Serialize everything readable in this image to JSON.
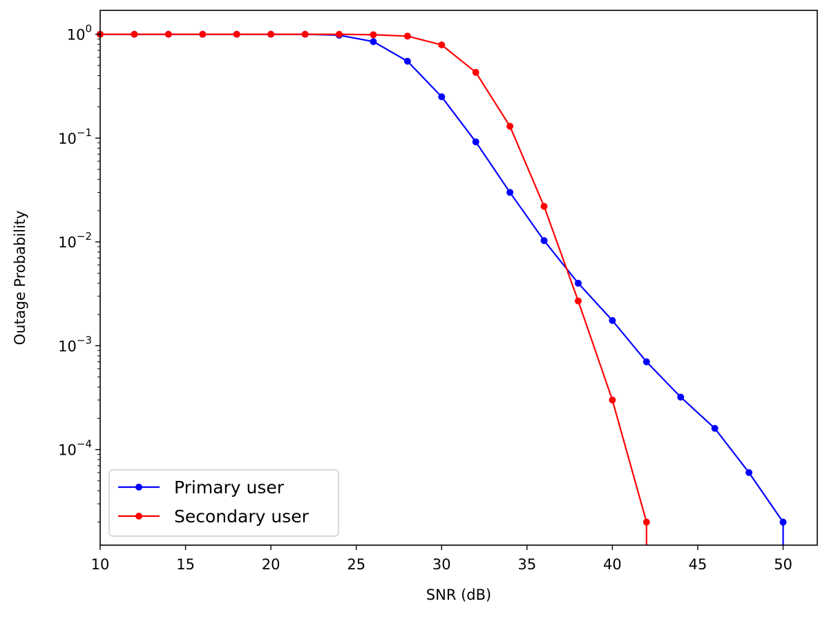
{
  "chart_data": {
    "type": "line",
    "title": "",
    "xlabel": "SNR (dB)",
    "ylabel": "Outage Probability",
    "xlim": [
      10,
      52
    ],
    "ylim": [
      1.2e-05,
      1.7
    ],
    "yscale": "log",
    "x_ticks": [
      10,
      15,
      20,
      25,
      30,
      35,
      40,
      45,
      50
    ],
    "x_tick_labels": [
      "10",
      "15",
      "20",
      "25",
      "30",
      "35",
      "40",
      "45",
      "50"
    ],
    "y_ticks": [
      {
        "value": 1,
        "base": "10",
        "exp": "0"
      },
      {
        "value": 0.1,
        "base": "10",
        "exp": "−1"
      },
      {
        "value": 0.01,
        "base": "10",
        "exp": "−2"
      },
      {
        "value": 0.001,
        "base": "10",
        "exp": "−3"
      },
      {
        "value": 0.0001,
        "base": "10",
        "exp": "−4"
      }
    ],
    "grid": false,
    "legend_position": "lower-left",
    "series": [
      {
        "name": "Primary user",
        "color": "#0000ff",
        "x": [
          10,
          12,
          14,
          16,
          18,
          20,
          22,
          24,
          26,
          28,
          30,
          32,
          34,
          36,
          38,
          40,
          42,
          44,
          46,
          48,
          50
        ],
        "y": [
          1.0,
          1.0,
          1.0,
          1.0,
          1.0,
          1.0,
          1.0,
          0.98,
          0.85,
          0.55,
          0.25,
          0.092,
          0.03,
          0.0103,
          0.004,
          0.00175,
          0.0007,
          0.00032,
          0.00016,
          6e-05,
          2e-05
        ],
        "drop_to_axis_after_last": true
      },
      {
        "name": "Secondary user",
        "color": "#ff0000",
        "x": [
          10,
          12,
          14,
          16,
          18,
          20,
          22,
          24,
          26,
          28,
          30,
          32,
          34,
          36,
          38,
          40,
          42
        ],
        "y": [
          1.0,
          1.0,
          1.0,
          1.0,
          1.0,
          1.0,
          1.0,
          1.0,
          0.99,
          0.96,
          0.79,
          0.43,
          0.13,
          0.022,
          0.0027,
          0.0003,
          2e-05
        ],
        "drop_to_axis_after_last": true
      }
    ]
  }
}
